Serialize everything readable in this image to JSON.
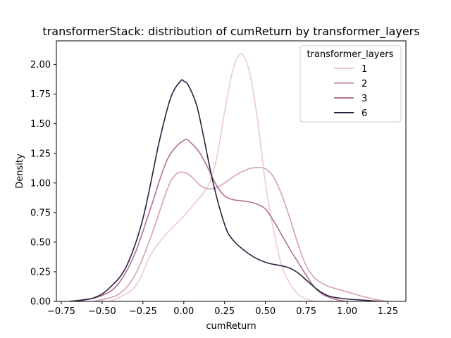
{
  "chart_data": {
    "type": "line",
    "title": "transformerStack: distribution of cumReturn by transformer_layers",
    "xlabel": "cumReturn",
    "ylabel": "Density",
    "xlim": [
      -0.78,
      1.36
    ],
    "ylim": [
      0,
      2.2
    ],
    "xticks": [
      "−0.75",
      "−0.50",
      "−0.25",
      "0.00",
      "0.25",
      "0.50",
      "0.75",
      "1.00",
      "1.25"
    ],
    "xtick_values": [
      -0.75,
      -0.5,
      -0.25,
      0.0,
      0.25,
      0.5,
      0.75,
      1.0,
      1.25
    ],
    "yticks": [
      "0.00",
      "0.25",
      "0.50",
      "0.75",
      "1.00",
      "1.25",
      "1.50",
      "1.75",
      "2.00"
    ],
    "ytick_values": [
      0,
      0.25,
      0.5,
      0.75,
      1.0,
      1.25,
      1.5,
      1.75,
      2.0
    ],
    "grid": false,
    "legend": {
      "title": "transformer_layers",
      "placement": "top-right"
    },
    "series": [
      {
        "name": "1",
        "color": "#ebcbca",
        "x": [
          -0.45,
          -0.3,
          -0.2,
          -0.1,
          0.0,
          0.08,
          0.15,
          0.2,
          0.25,
          0.3,
          0.35,
          0.4,
          0.45,
          0.5,
          0.55,
          0.6,
          0.65,
          0.7,
          0.75,
          0.8
        ],
        "y": [
          0.0,
          0.12,
          0.4,
          0.58,
          0.72,
          0.85,
          0.98,
          1.2,
          1.6,
          1.95,
          2.09,
          1.95,
          1.55,
          1.0,
          0.6,
          0.3,
          0.15,
          0.06,
          0.02,
          0.0
        ]
      },
      {
        "name": "2",
        "color": "#d5a2b3",
        "x": [
          -0.55,
          -0.4,
          -0.3,
          -0.2,
          -0.1,
          -0.05,
          0.0,
          0.05,
          0.1,
          0.15,
          0.2,
          0.25,
          0.3,
          0.35,
          0.4,
          0.45,
          0.5,
          0.55,
          0.6,
          0.65,
          0.7,
          0.75,
          0.8,
          0.85,
          0.9,
          0.95,
          1.0,
          1.05,
          1.1,
          1.2,
          1.25
        ],
        "y": [
          0.0,
          0.06,
          0.22,
          0.55,
          0.95,
          1.07,
          1.09,
          1.05,
          0.98,
          0.95,
          0.96,
          1.0,
          1.05,
          1.09,
          1.12,
          1.13,
          1.12,
          1.05,
          0.9,
          0.7,
          0.48,
          0.3,
          0.2,
          0.15,
          0.12,
          0.1,
          0.08,
          0.06,
          0.04,
          0.01,
          0.0
        ]
      },
      {
        "name": "3",
        "color": "#b1718f",
        "x": [
          -0.65,
          -0.5,
          -0.4,
          -0.3,
          -0.2,
          -0.1,
          0.0,
          0.05,
          0.1,
          0.15,
          0.2,
          0.25,
          0.3,
          0.35,
          0.4,
          0.45,
          0.5,
          0.55,
          0.6,
          0.65,
          0.7,
          0.75,
          0.8,
          0.85,
          0.9,
          0.95,
          1.0
        ],
        "y": [
          0.0,
          0.05,
          0.15,
          0.4,
          0.8,
          1.2,
          1.36,
          1.33,
          1.25,
          1.12,
          0.98,
          0.89,
          0.86,
          0.85,
          0.84,
          0.82,
          0.78,
          0.68,
          0.56,
          0.44,
          0.33,
          0.22,
          0.12,
          0.06,
          0.03,
          0.01,
          0.0
        ]
      },
      {
        "name": "6",
        "color": "#2d1e3e",
        "x": [
          -0.7,
          -0.55,
          -0.45,
          -0.35,
          -0.25,
          -0.15,
          -0.08,
          -0.02,
          0.0,
          0.03,
          0.08,
          0.12,
          0.18,
          0.25,
          0.3,
          0.4,
          0.5,
          0.6,
          0.65,
          0.7,
          0.75,
          0.8,
          0.85,
          0.9,
          1.0,
          1.1,
          1.2
        ],
        "y": [
          0.0,
          0.03,
          0.12,
          0.3,
          0.7,
          1.35,
          1.72,
          1.86,
          1.86,
          1.82,
          1.65,
          1.4,
          1.0,
          0.65,
          0.52,
          0.4,
          0.33,
          0.3,
          0.28,
          0.24,
          0.18,
          0.12,
          0.07,
          0.04,
          0.02,
          0.01,
          0.0
        ]
      }
    ]
  }
}
